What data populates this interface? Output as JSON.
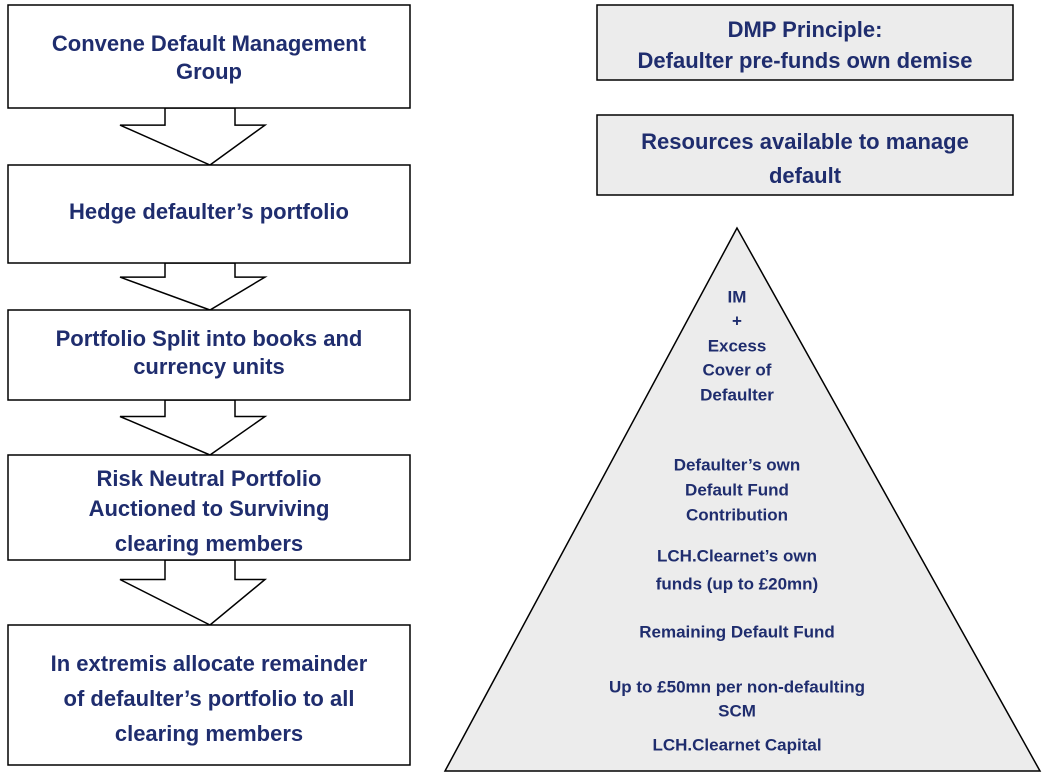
{
  "flow_steps": [
    {
      "lines": [
        "Convene Default Management",
        "Group"
      ]
    },
    {
      "lines": [
        "Hedge defaulter’s portfolio"
      ]
    },
    {
      "lines": [
        "Portfolio Split into books and",
        "currency units"
      ]
    },
    {
      "lines": [
        "Risk Neutral Portfolio",
        "Auctioned to Surviving",
        "clearing members"
      ]
    },
    {
      "lines": [
        "In extremis allocate remainder",
        "of defaulter’s portfolio to all",
        "clearing members"
      ]
    }
  ],
  "info_boxes": [
    {
      "lines": [
        "DMP Principle:",
        "Defaulter pre-funds own demise"
      ]
    },
    {
      "lines": [
        "Resources available to manage",
        "default"
      ]
    }
  ],
  "pyramid_tiers": [
    {
      "lines": [
        "IM",
        "+",
        "Excess",
        "Cover of",
        "Defaulter"
      ]
    },
    {
      "lines": [
        "Defaulter’s own",
        "Default Fund",
        "Contribution"
      ]
    },
    {
      "lines": [
        "LCH.Clearnet’s own",
        "funds (up to £20mn)"
      ]
    },
    {
      "lines": [
        "Remaining Default Fund"
      ]
    },
    {
      "lines": [
        "Up  to £50mn per non-defaulting",
        "SCM"
      ]
    },
    {
      "lines": [
        "LCH.Clearnet Capital"
      ]
    }
  ]
}
